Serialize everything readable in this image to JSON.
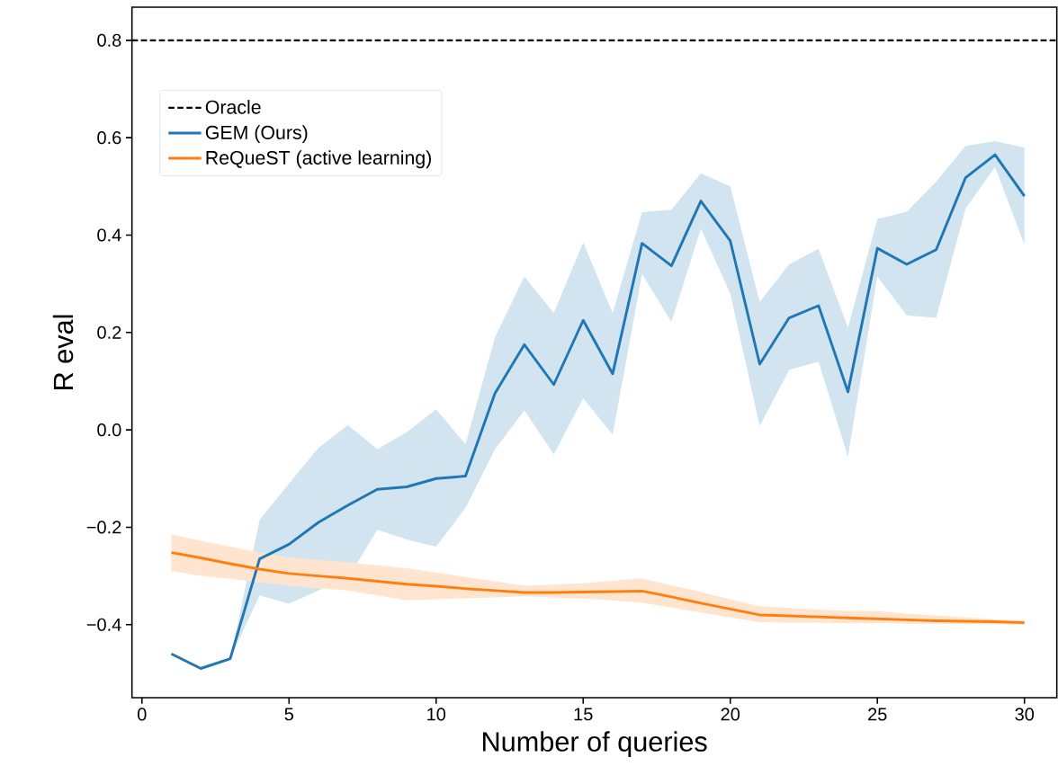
{
  "chart_data": {
    "type": "line",
    "xlabel": "Number of queries",
    "ylabel": "R eval",
    "x": [
      1,
      2,
      3,
      4,
      5,
      6,
      7,
      8,
      9,
      10,
      11,
      12,
      13,
      14,
      15,
      16,
      17,
      18,
      19,
      20,
      21,
      22,
      23,
      24,
      25,
      26,
      27,
      28,
      29,
      30
    ],
    "series": [
      {
        "name": "GEM (Ours)",
        "color": "#1f77b4",
        "values": [
          -0.46,
          -0.49,
          -0.47,
          -0.265,
          -0.235,
          -0.19,
          -0.155,
          -0.122,
          -0.117,
          -0.1,
          -0.095,
          0.075,
          0.175,
          0.093,
          0.225,
          0.115,
          0.383,
          0.337,
          0.47,
          0.388,
          0.135,
          0.23,
          0.255,
          0.078,
          0.373,
          0.34,
          0.37,
          0.518,
          0.565,
          0.48
        ],
        "lower": [
          -0.46,
          -0.49,
          -0.47,
          -0.34,
          -0.357,
          -0.33,
          -0.305,
          -0.205,
          -0.225,
          -0.24,
          -0.16,
          -0.04,
          0.04,
          -0.05,
          0.065,
          -0.01,
          0.32,
          0.222,
          0.413,
          0.28,
          0.008,
          0.123,
          0.14,
          -0.055,
          0.315,
          0.235,
          0.23,
          0.455,
          0.54,
          0.38
        ],
        "upper": [
          -0.46,
          -0.49,
          -0.47,
          -0.185,
          -0.11,
          -0.037,
          0.01,
          -0.04,
          -0.005,
          0.042,
          -0.03,
          0.19,
          0.315,
          0.24,
          0.385,
          0.24,
          0.447,
          0.452,
          0.527,
          0.5,
          0.263,
          0.34,
          0.372,
          0.21,
          0.433,
          0.448,
          0.51,
          0.583,
          0.593,
          0.58
        ]
      },
      {
        "name": "ReQueST (active learning)",
        "color": "#ff7f0e",
        "values": [
          -0.252,
          -0.263,
          -0.275,
          -0.286,
          -0.295,
          -0.3,
          -0.305,
          -0.311,
          -0.317,
          -0.321,
          -0.326,
          -0.33,
          -0.334,
          -0.334,
          -0.333,
          -0.332,
          -0.331,
          -0.343,
          -0.356,
          -0.368,
          -0.38,
          -0.382,
          -0.384,
          -0.386,
          -0.388,
          -0.39,
          -0.392,
          -0.393,
          -0.394,
          -0.396
        ],
        "lower": [
          -0.29,
          -0.3,
          -0.306,
          -0.313,
          -0.32,
          -0.325,
          -0.33,
          -0.34,
          -0.35,
          -0.348,
          -0.346,
          -0.344,
          -0.342,
          -0.344,
          -0.346,
          -0.35,
          -0.355,
          -0.365,
          -0.375,
          -0.385,
          -0.395,
          -0.396,
          -0.396,
          -0.397,
          -0.397,
          -0.398,
          -0.398,
          -0.399,
          -0.399,
          -0.4
        ],
        "upper": [
          -0.215,
          -0.228,
          -0.24,
          -0.252,
          -0.262,
          -0.267,
          -0.272,
          -0.278,
          -0.284,
          -0.293,
          -0.302,
          -0.311,
          -0.32,
          -0.318,
          -0.315,
          -0.31,
          -0.305,
          -0.319,
          -0.333,
          -0.348,
          -0.362,
          -0.366,
          -0.369,
          -0.372,
          -0.372,
          -0.378,
          -0.381,
          -0.385,
          -0.389,
          -0.392
        ]
      }
    ],
    "ref_lines": [
      {
        "axis": "y",
        "value": 0.8,
        "label": "Oracle",
        "color": "#000000",
        "line_style": "dashed"
      }
    ],
    "xlim": [
      -0.34,
      31.1
    ],
    "ylim": [
      -0.55,
      0.868
    ],
    "xticks": [
      0,
      5,
      10,
      15,
      20,
      25,
      30
    ],
    "yticks": [
      {
        "value": -0.4,
        "label": "−0.4"
      },
      {
        "value": -0.2,
        "label": "−0.2"
      },
      {
        "value": 0,
        "label": "0.0"
      },
      {
        "value": 0.2,
        "label": "0.2"
      },
      {
        "value": 0.4,
        "label": "0.4"
      },
      {
        "value": 0.6,
        "label": "0.6"
      },
      {
        "value": 0.8,
        "label": "0.8"
      }
    ],
    "legend": "top left"
  }
}
